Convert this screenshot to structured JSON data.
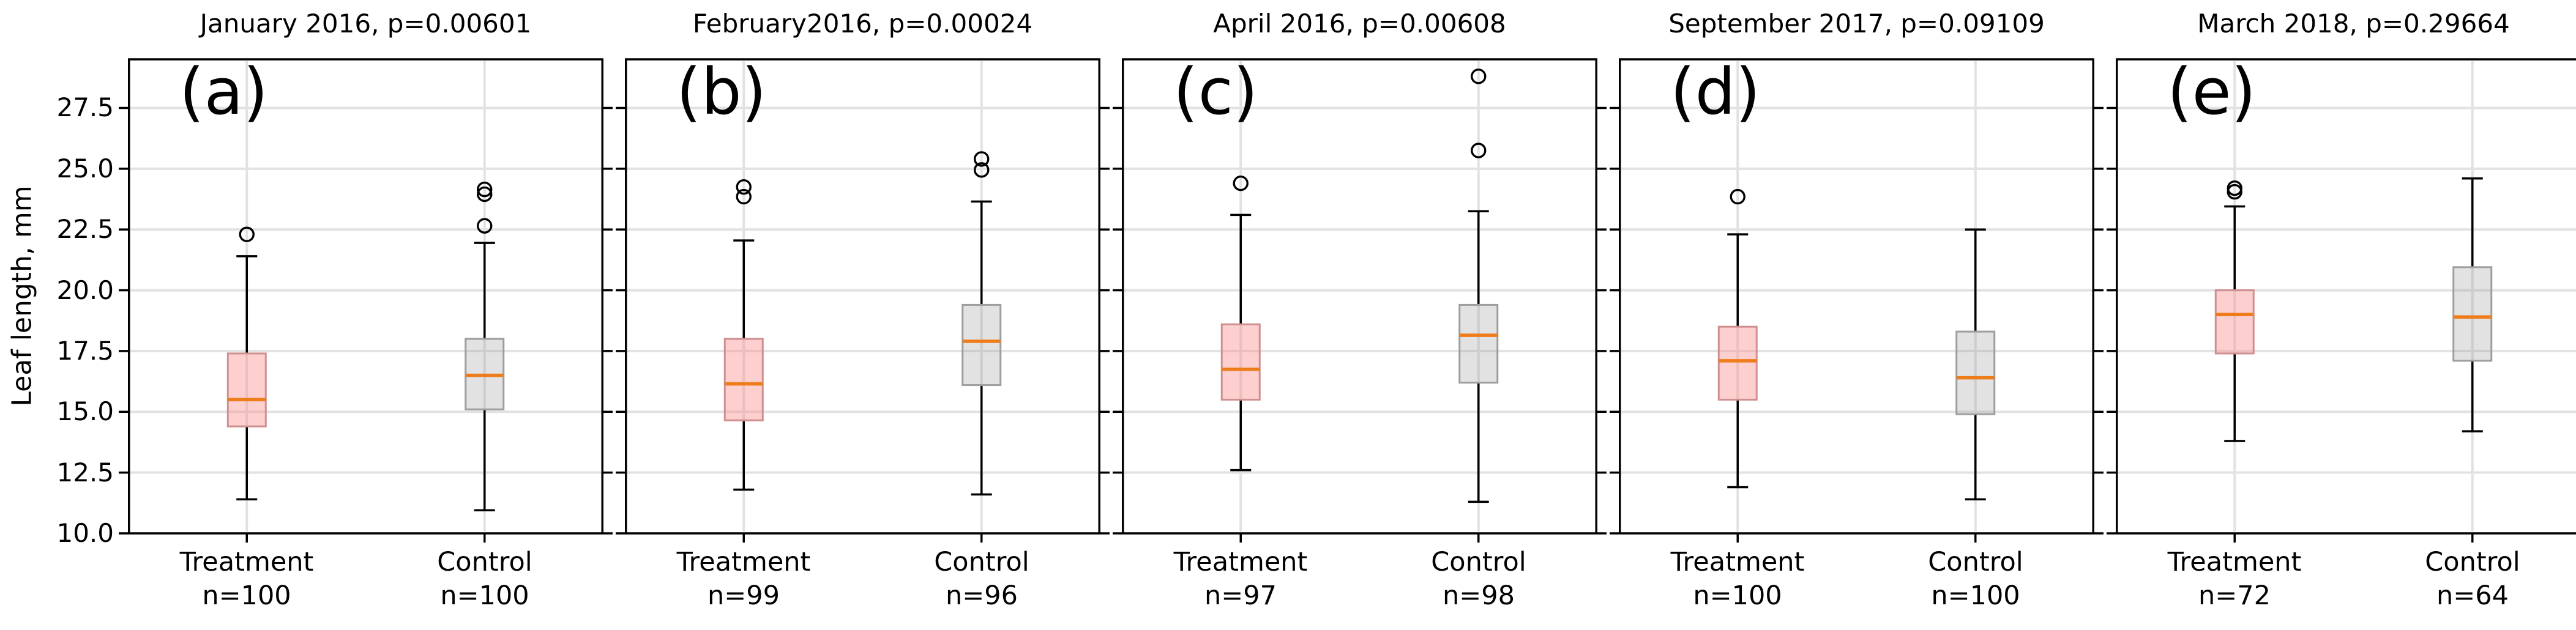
{
  "chart_data": {
    "type": "boxplot",
    "ylabel": "Leaf length, mm",
    "ylim": [
      10.0,
      29.5
    ],
    "grid": true,
    "y_axis": {
      "label": "Leaf length, mm",
      "ticks": [
        "10.0",
        "12.5",
        "15.0",
        "17.5",
        "20.0",
        "22.5",
        "25.0",
        "27.5"
      ],
      "tick_values": [
        10.0,
        12.5,
        15.0,
        17.5,
        20.0,
        22.5,
        25.0,
        27.5
      ]
    },
    "style": {
      "treatment_fill": "rgba(250,140,140,0.42)",
      "treatment_edge": "#cf8f8f",
      "control_fill": "rgba(150,150,150,0.28)",
      "control_edge": "#9e9e9e",
      "median_color": "#ef7c1b",
      "line_color": "#000000",
      "grid_color": "#e2e2e2"
    },
    "panels": [
      {
        "letter": "(a)",
        "title": "January 2016, p=0.00601",
        "groups": [
          {
            "label": "Treatment",
            "n_label": "n=100",
            "color_key": "treatment",
            "whislo": 11.4,
            "q1": 14.4,
            "med": 15.5,
            "q3": 17.4,
            "whishi": 21.4,
            "outliers": [
              22.3
            ]
          },
          {
            "label": "Control",
            "n_label": "n=100",
            "color_key": "control",
            "whislo": 10.95,
            "q1": 15.1,
            "med": 16.5,
            "q3": 18.0,
            "whishi": 21.95,
            "outliers": [
              22.65,
              23.95,
              24.15
            ]
          }
        ]
      },
      {
        "letter": "(b)",
        "title": "February2016, p=0.00024",
        "groups": [
          {
            "label": "Treatment",
            "n_label": "n=99",
            "color_key": "treatment",
            "whislo": 11.8,
            "q1": 14.65,
            "med": 16.15,
            "q3": 18.0,
            "whishi": 22.05,
            "outliers": [
              23.85,
              24.25
            ]
          },
          {
            "label": "Control",
            "n_label": "n=96",
            "color_key": "control",
            "whislo": 11.6,
            "q1": 16.1,
            "med": 17.9,
            "q3": 19.4,
            "whishi": 23.65,
            "outliers": [
              24.95,
              25.4
            ]
          }
        ]
      },
      {
        "letter": "(c)",
        "title": "April 2016, p=0.00608",
        "groups": [
          {
            "label": "Treatment",
            "n_label": "n=97",
            "color_key": "treatment",
            "whislo": 12.6,
            "q1": 15.5,
            "med": 16.75,
            "q3": 18.6,
            "whishi": 23.1,
            "outliers": [
              24.4
            ]
          },
          {
            "label": "Control",
            "n_label": "n=98",
            "color_key": "control",
            "whislo": 11.3,
            "q1": 16.2,
            "med": 18.15,
            "q3": 19.4,
            "whishi": 23.25,
            "outliers": [
              25.75,
              28.8
            ]
          }
        ]
      },
      {
        "letter": "(d)",
        "title": "September 2017, p=0.09109",
        "groups": [
          {
            "label": "Treatment",
            "n_label": "n=100",
            "color_key": "treatment",
            "whislo": 11.9,
            "q1": 15.5,
            "med": 17.1,
            "q3": 18.5,
            "whishi": 22.3,
            "outliers": [
              23.85
            ]
          },
          {
            "label": "Control",
            "n_label": "n=100",
            "color_key": "control",
            "whislo": 11.4,
            "q1": 14.9,
            "med": 16.4,
            "q3": 18.3,
            "whishi": 22.5,
            "outliers": []
          }
        ]
      },
      {
        "letter": "(e)",
        "title": "March 2018, p=0.29664",
        "groups": [
          {
            "label": "Treatment",
            "n_label": "n=72",
            "color_key": "treatment",
            "whislo": 13.8,
            "q1": 17.4,
            "med": 19.0,
            "q3": 20.0,
            "whishi": 23.45,
            "outliers": [
              24.05,
              24.2
            ]
          },
          {
            "label": "Control",
            "n_label": "n=64",
            "color_key": "control",
            "whislo": 14.2,
            "q1": 17.1,
            "med": 18.9,
            "q3": 20.95,
            "whishi": 24.6,
            "outliers": []
          }
        ]
      }
    ]
  }
}
